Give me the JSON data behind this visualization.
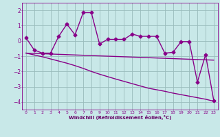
{
  "xlabel": "Windchill (Refroidissement éolien,°C)",
  "ylabel": "",
  "xlim": [
    -0.5,
    23.5
  ],
  "ylim": [
    -4.5,
    2.5
  ],
  "yticks": [
    2,
    1,
    0,
    -1,
    -2,
    -3,
    -4
  ],
  "xticks": [
    0,
    1,
    2,
    3,
    4,
    5,
    6,
    7,
    8,
    9,
    10,
    11,
    12,
    13,
    14,
    15,
    16,
    17,
    18,
    19,
    20,
    21,
    22,
    23
  ],
  "x": [
    0,
    1,
    2,
    3,
    4,
    5,
    6,
    7,
    8,
    9,
    10,
    11,
    12,
    13,
    14,
    15,
    16,
    17,
    18,
    19,
    20,
    21,
    22,
    23
  ],
  "y_line1": [
    0.2,
    -0.6,
    -0.8,
    -0.8,
    0.3,
    1.1,
    0.4,
    1.85,
    1.85,
    -0.2,
    0.1,
    0.1,
    0.1,
    0.45,
    0.3,
    0.3,
    0.3,
    -0.8,
    -0.75,
    -0.05,
    -0.05,
    -2.7,
    -0.9,
    -3.9
  ],
  "y_line2": [
    -0.8,
    -0.82,
    -0.84,
    -0.86,
    -0.88,
    -0.9,
    -0.92,
    -0.94,
    -0.96,
    -0.98,
    -1.0,
    -1.02,
    -1.04,
    -1.06,
    -1.08,
    -1.1,
    -1.12,
    -1.14,
    -1.16,
    -1.18,
    -1.2,
    -1.22,
    -1.24,
    -1.26
  ],
  "y_line3": [
    -0.8,
    -0.92,
    -1.04,
    -1.18,
    -1.32,
    -1.46,
    -1.62,
    -1.8,
    -2.0,
    -2.18,
    -2.34,
    -2.5,
    -2.65,
    -2.8,
    -2.95,
    -3.1,
    -3.2,
    -3.3,
    -3.42,
    -3.52,
    -3.62,
    -3.72,
    -3.82,
    -3.95
  ],
  "line_color": "#880088",
  "bg_color": "#c8e8e8",
  "grid_color": "#99bbbb",
  "tick_label_color": "#880088",
  "xlabel_color": "#660066",
  "marker": "D",
  "marker_size": 2.5,
  "line_width": 1.0
}
